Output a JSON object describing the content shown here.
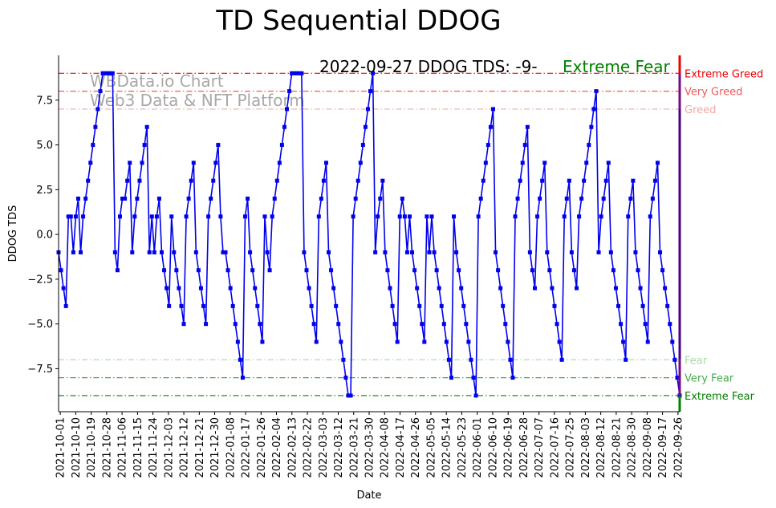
{
  "chart_data": {
    "type": "line",
    "title": "TD Sequential DDOG",
    "xlabel": "Date",
    "ylabel": "DDOG TDS",
    "ylim": [
      -9.9,
      10
    ],
    "yticks": [
      -7.5,
      -5.0,
      -2.5,
      0.0,
      2.5,
      5.0,
      7.5
    ],
    "ytick_labels": [
      "−7.5",
      "−5.0",
      "−2.5",
      "0.0",
      "2.5",
      "5.0",
      "7.5"
    ],
    "xticks": [
      "2021-10-01",
      "2021-10-10",
      "2021-10-19",
      "2021-10-28",
      "2021-11-06",
      "2021-11-15",
      "2021-11-24",
      "2021-12-03",
      "2021-12-12",
      "2021-12-21",
      "2021-12-30",
      "2022-01-08",
      "2022-01-17",
      "2022-01-26",
      "2022-02-04",
      "2022-02-13",
      "2022-02-22",
      "2022-03-03",
      "2022-03-12",
      "2022-03-21",
      "2022-03-30",
      "2022-04-08",
      "2022-04-17",
      "2022-04-26",
      "2022-05-05",
      "2022-05-14",
      "2022-05-23",
      "2022-06-01",
      "2022-06-10",
      "2022-06-19",
      "2022-06-28",
      "2022-07-07",
      "2022-07-16",
      "2022-07-25",
      "2022-08-03",
      "2022-08-12",
      "2022-08-21",
      "2022-08-30",
      "2022-09-08",
      "2022-09-17",
      "2022-09-26"
    ],
    "x_start": "2021-09-30",
    "x_end": "2022-09-27",
    "annotation": "2022-09-27 DDOG TDS: -9-",
    "status_label": "Extreme Fear",
    "status_color": "#008000",
    "watermark": [
      "WBData.io Chart",
      "Web3 Data & NFT Platform"
    ],
    "series": [
      {
        "color": "#0000ee",
        "marker": "square",
        "values": [
          -1,
          -2,
          -3,
          -4,
          1,
          1,
          -1,
          1,
          2,
          -1,
          1,
          2,
          3,
          4,
          5,
          6,
          7,
          8,
          9,
          9,
          9,
          9,
          9,
          -1,
          -2,
          1,
          2,
          2,
          3,
          4,
          -1,
          1,
          2,
          3,
          4,
          5,
          6,
          -1,
          1,
          -1,
          1,
          2,
          -1,
          -2,
          -3,
          -4,
          1,
          -1,
          -2,
          -3,
          -4,
          -5,
          1,
          2,
          3,
          4,
          -1,
          -2,
          -3,
          -4,
          -5,
          1,
          2,
          3,
          4,
          5,
          1,
          -1,
          -1,
          -2,
          -3,
          -4,
          -5,
          -6,
          -7,
          -8,
          1,
          2,
          -1,
          -2,
          -3,
          -4,
          -5,
          -6,
          1,
          -1,
          -2,
          1,
          2,
          3,
          4,
          5,
          6,
          7,
          8,
          9,
          9,
          9,
          9,
          9,
          -1,
          -2,
          -3,
          -4,
          -5,
          -6,
          1,
          2,
          3,
          4,
          -1,
          -2,
          -3,
          -4,
          -5,
          -6,
          -7,
          -8,
          -9,
          -9,
          1,
          2,
          3,
          4,
          5,
          6,
          7,
          8,
          9,
          -1,
          1,
          2,
          3,
          -1,
          -2,
          -3,
          -4,
          -5,
          -6,
          1,
          2,
          1,
          -1,
          1,
          -1,
          -2,
          -3,
          -4,
          -5,
          -6,
          1,
          -1,
          1,
          -1,
          -2,
          -3,
          -4,
          -5,
          -6,
          -7,
          -8,
          1,
          -1,
          -2,
          -3,
          -4,
          -5,
          -6,
          -7,
          -8,
          -9,
          1,
          2,
          3,
          4,
          5,
          6,
          7,
          -1,
          -2,
          -3,
          -4,
          -5,
          -6,
          -7,
          -8,
          1,
          2,
          3,
          4,
          5,
          6,
          -1,
          -2,
          -3,
          1,
          2,
          3,
          4,
          -1,
          -2,
          -3,
          -4,
          -5,
          -6,
          -7,
          1,
          2,
          3,
          -1,
          -2,
          -3,
          1,
          2,
          3,
          4,
          5,
          6,
          7,
          8,
          -1,
          1,
          2,
          3,
          4,
          -1,
          -2,
          -3,
          -4,
          -5,
          -6,
          -7,
          1,
          2,
          3,
          -1,
          -2,
          -3,
          -4,
          -5,
          -6,
          1,
          2,
          3,
          4,
          -1,
          -2,
          -3,
          -4,
          -5,
          -6,
          -7,
          -8,
          -9
        ]
      }
    ],
    "levels": [
      {
        "value": 9,
        "label": "Extreme Greed",
        "color": "#ee0000",
        "style": "dashdot"
      },
      {
        "value": 8,
        "label": "Very Greed",
        "color": "#f05a5a",
        "style": "dashdot"
      },
      {
        "value": 7,
        "label": "Greed",
        "color": "#f4a8a8",
        "style": "dashdot"
      },
      {
        "value": -7,
        "label": "Fear",
        "color": "#a8d8a8",
        "style": "dashdot"
      },
      {
        "value": -8,
        "label": "Very Fear",
        "color": "#4aaa4a",
        "style": "dashdot"
      },
      {
        "value": -9,
        "label": "Extreme Fear",
        "color": "#008000",
        "style": "dashdot"
      }
    ],
    "gauge_colors": [
      "#ee0000",
      "#7a0a7a",
      "#4b0082",
      "#008000"
    ]
  }
}
